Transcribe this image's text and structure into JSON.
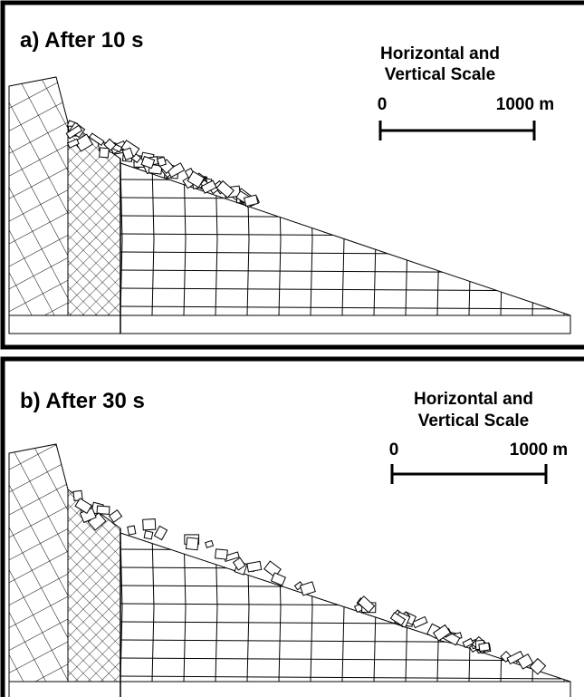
{
  "panels": [
    {
      "title": "a) After 10 s",
      "scale": {
        "title_lines": [
          "Horizontal and",
          "Vertical Scale"
        ],
        "start": "0",
        "end": "1000 m"
      }
    },
    {
      "title": "b) After 30 s",
      "scale": {
        "title_lines": [
          "Horizontal and",
          "Vertical Scale"
        ],
        "start": "0",
        "end": "1000 m"
      }
    }
  ]
}
